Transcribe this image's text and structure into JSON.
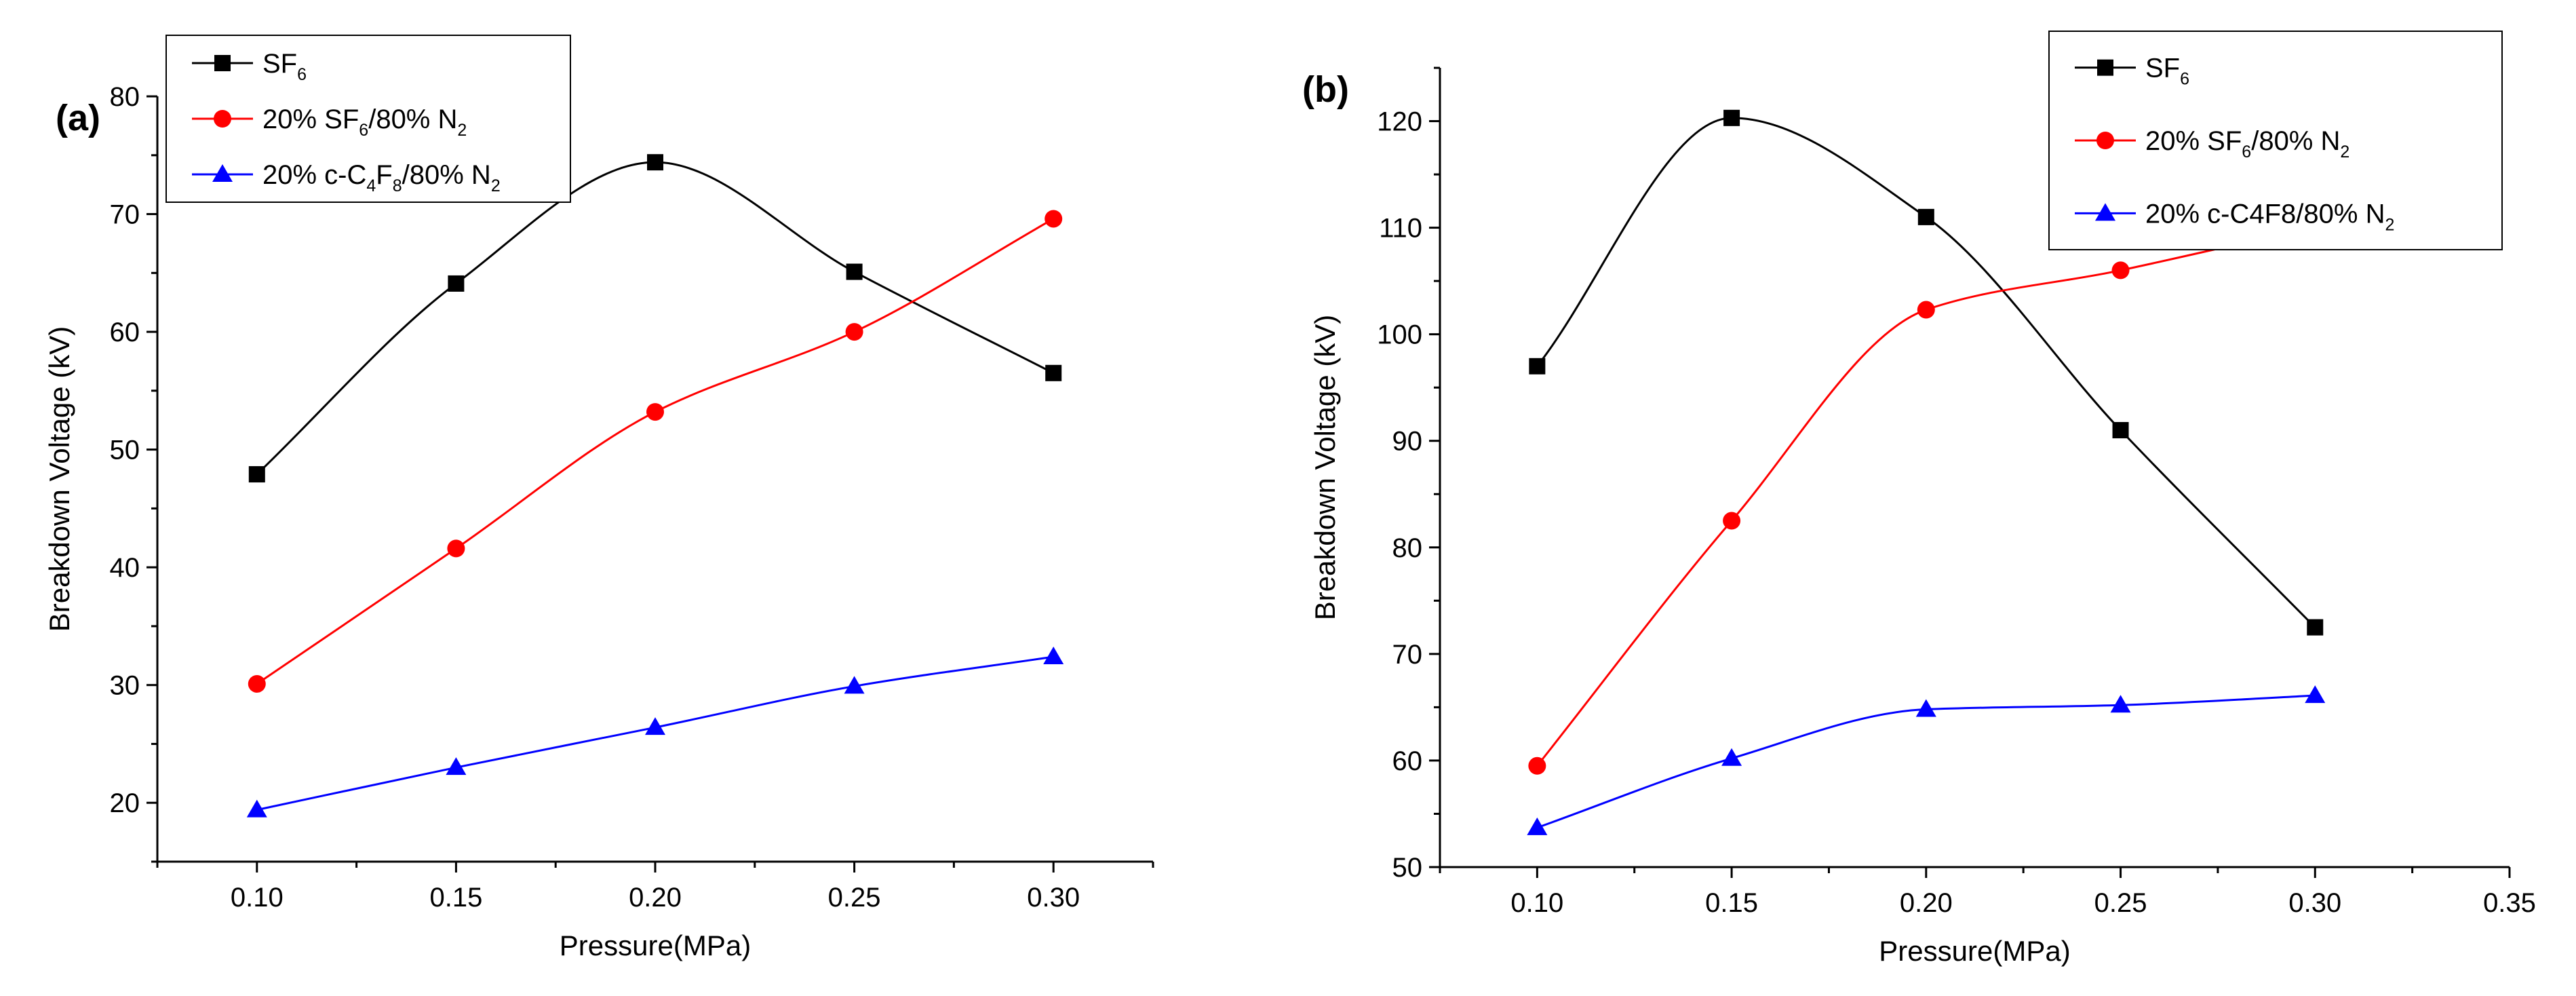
{
  "chart_data": [
    {
      "type": "line",
      "panel_label": "(a)",
      "xlabel": "Pressure(MPa)",
      "ylabel": "Breakdown Voltage (kV)",
      "xlim": [
        0.075,
        0.325
      ],
      "ylim": [
        15,
        80
      ],
      "xticks": [
        "0.10",
        "0.15",
        "0.20",
        "0.25",
        "0.30"
      ],
      "xtick_values": [
        0.1,
        0.15,
        0.2,
        0.25,
        0.3
      ],
      "yticks": [
        "20",
        "30",
        "40",
        "50",
        "60",
        "70",
        "80"
      ],
      "ytick_values": [
        20,
        30,
        40,
        50,
        60,
        70,
        80
      ],
      "grid": false,
      "legend_position": "top-left",
      "x": [
        0.1,
        0.15,
        0.2,
        0.25,
        0.3
      ],
      "series": [
        {
          "name": "SF6",
          "legend_parts": [
            [
              "SF",
              ""
            ],
            [
              "6",
              "sub"
            ]
          ],
          "color": "#000000",
          "marker": "square",
          "values": [
            47.9,
            64.1,
            74.4,
            65.1,
            56.5
          ]
        },
        {
          "name": "20% SF6/80% N2",
          "legend_parts": [
            [
              "20% SF",
              ""
            ],
            [
              "6",
              "sub"
            ],
            [
              "/80% N",
              ""
            ],
            [
              "2",
              "sub"
            ]
          ],
          "color": "#ff0000",
          "marker": "circle",
          "values": [
            30.1,
            41.6,
            53.2,
            60.0,
            69.6
          ]
        },
        {
          "name": "20% c-C4F8/80% N2",
          "legend_parts": [
            [
              "20% c-C",
              ""
            ],
            [
              "4",
              "sub"
            ],
            [
              "F",
              ""
            ],
            [
              "8",
              "sub"
            ],
            [
              "/80% N",
              ""
            ],
            [
              "2",
              "sub"
            ]
          ],
          "color": "#0000ff",
          "marker": "triangle",
          "values": [
            19.4,
            23.0,
            26.4,
            29.9,
            32.4
          ]
        }
      ]
    },
    {
      "type": "line",
      "panel_label": "(b)",
      "xlabel": "Pressure(MPa)",
      "ylabel": "Breakdown Voltage (kV)",
      "xlim": [
        0.075,
        0.35
      ],
      "ylim": [
        50,
        125
      ],
      "xticks": [
        "0.10",
        "0.15",
        "0.20",
        "0.25",
        "0.30",
        "0.35"
      ],
      "xtick_values": [
        0.1,
        0.15,
        0.2,
        0.25,
        0.3,
        0.35
      ],
      "yticks": [
        "50",
        "60",
        "70",
        "80",
        "90",
        "100",
        "110",
        "120"
      ],
      "ytick_values": [
        50,
        60,
        70,
        80,
        90,
        100,
        110,
        120
      ],
      "grid": false,
      "legend_position": "top-right",
      "x": [
        0.1,
        0.15,
        0.2,
        0.25,
        0.3
      ],
      "series": [
        {
          "name": "SF6",
          "legend_parts": [
            [
              "SF",
              ""
            ],
            [
              "6",
              "sub"
            ]
          ],
          "color": "#000000",
          "marker": "square",
          "values": [
            97.0,
            120.3,
            111.0,
            91.0,
            72.5
          ]
        },
        {
          "name": "20% SF6/80% N2",
          "legend_parts": [
            [
              "20% SF",
              ""
            ],
            [
              "6",
              "sub"
            ],
            [
              "/80% N",
              ""
            ],
            [
              "2",
              "sub"
            ]
          ],
          "color": "#ff0000",
          "marker": "circle",
          "values": [
            59.5,
            82.5,
            102.3,
            106.0,
            110.1
          ]
        },
        {
          "name": "20% c-C4F8/80% N2",
          "legend_parts": [
            [
              "20% c-C4F8/80% N",
              ""
            ],
            [
              "2",
              "sub"
            ]
          ],
          "color": "#0000ff",
          "marker": "triangle",
          "values": [
            53.7,
            60.2,
            64.8,
            65.2,
            66.1
          ]
        }
      ]
    }
  ]
}
